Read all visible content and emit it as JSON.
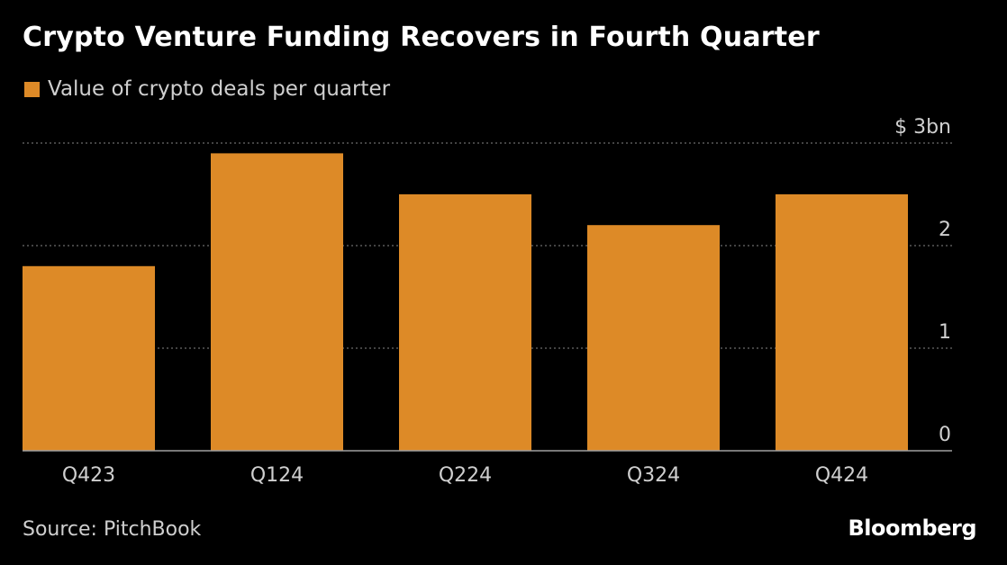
{
  "title": "Crypto Venture Funding Recovers in Fourth Quarter",
  "legend": {
    "label": "Value of crypto deals per quarter"
  },
  "source": "Source: PitchBook",
  "brand": "Bloomberg",
  "colors": {
    "bar": "#dd8a27",
    "background": "#000000",
    "grid": "#6b6b6b",
    "axis": "#a0a0a0",
    "text": "#cfcfcf"
  },
  "chart_data": {
    "type": "bar",
    "categories": [
      "Q423",
      "Q124",
      "Q224",
      "Q324",
      "Q424"
    ],
    "values": [
      1.8,
      2.9,
      2.5,
      2.2,
      2.5
    ],
    "ylim": [
      0,
      3
    ],
    "yticks": [
      0,
      1,
      2,
      3
    ],
    "ytick_labels": [
      "0",
      "1",
      "2",
      "$ 3bn"
    ],
    "yaxis_side": "right",
    "grid": true
  }
}
